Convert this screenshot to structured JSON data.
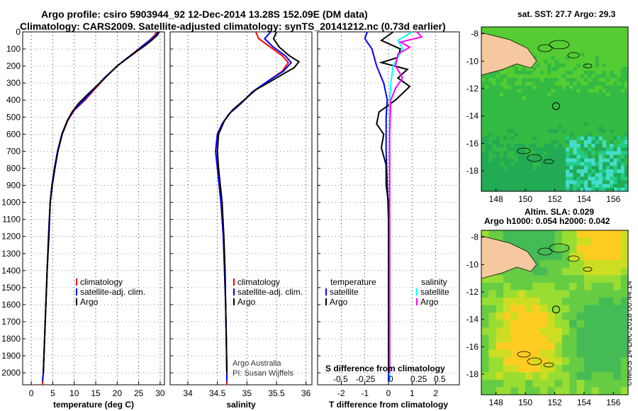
{
  "figure": {
    "title_line1": "Argo profile: csiro 5903944_92 12-Dec-2014 13.28S 152.09E (DM data)",
    "title_line2": "Climatology: CARS2009. Satellite-adjusted climatology: synTS_20141212.nc (0.73d earlier)",
    "stamp": "©IMOS 14-Dec-2018 00:44:14",
    "credit_line1": "Argo Australia",
    "credit_line2": "PI: Susan Wijffels",
    "colors": {
      "climatology": "#ff0000",
      "satellite": "#0000ff",
      "argo": "#000000",
      "sat_salinity": "#00ffff",
      "argo_salinity": "#ff00ff",
      "land": "#f5c8a0"
    }
  },
  "chart_data": [
    {
      "type": "line",
      "id": "temperature",
      "xlabel": "temperature (deg C)",
      "ylabel": "",
      "xlim": [
        -2,
        31
      ],
      "ylim": [
        2070,
        0
      ],
      "xticks": [
        0,
        5,
        10,
        15,
        20,
        25,
        30
      ],
      "yticks": [
        0,
        100,
        200,
        300,
        400,
        500,
        600,
        700,
        800,
        900,
        1000,
        1100,
        1200,
        1300,
        1400,
        1500,
        1600,
        1700,
        1800,
        1900,
        2000
      ],
      "grid": true,
      "legend": [
        "climatology",
        "satellite-adj. clim.",
        "Argo"
      ],
      "series": [
        {
          "name": "climatology",
          "color": "#ff0000",
          "points": [
            [
              29.2,
              0
            ],
            [
              28.7,
              20
            ],
            [
              27.5,
              50
            ],
            [
              26,
              80
            ],
            [
              24,
              120
            ],
            [
              20.5,
              190
            ],
            [
              17.5,
              260
            ],
            [
              15,
              330
            ],
            [
              12.5,
              400
            ],
            [
              10,
              460
            ],
            [
              8.5,
              520
            ],
            [
              7.2,
              600
            ],
            [
              6.2,
              700
            ],
            [
              5.4,
              800
            ],
            [
              4.8,
              900
            ],
            [
              4.4,
              1000
            ],
            [
              4,
              1200
            ],
            [
              3.7,
              1400
            ],
            [
              3.4,
              1600
            ],
            [
              3.1,
              1800
            ],
            [
              2.8,
              2000
            ],
            [
              2.6,
              2070
            ]
          ]
        },
        {
          "name": "satellite-adj. clim.",
          "color": "#0000ff",
          "points": [
            [
              29.6,
              0
            ],
            [
              29,
              20
            ],
            [
              27.6,
              50
            ],
            [
              26,
              80
            ],
            [
              23.7,
              130
            ],
            [
              20,
              200
            ],
            [
              17,
              270
            ],
            [
              14.8,
              330
            ],
            [
              12.3,
              400
            ],
            [
              9.9,
              460
            ],
            [
              8.4,
              520
            ],
            [
              7.1,
              600
            ],
            [
              6.1,
              700
            ],
            [
              5.4,
              800
            ],
            [
              4.8,
              900
            ],
            [
              4.4,
              1000
            ],
            [
              4,
              1200
            ],
            [
              3.7,
              1400
            ],
            [
              3.4,
              1600
            ],
            [
              3.1,
              1800
            ],
            [
              2.8,
              2000
            ],
            [
              2.6,
              2050
            ]
          ]
        },
        {
          "name": "Argo",
          "color": "#000000",
          "points": [
            [
              29.8,
              0
            ],
            [
              29.3,
              20
            ],
            [
              28,
              50
            ],
            [
              26.5,
              80
            ],
            [
              24.8,
              110
            ],
            [
              22.5,
              150
            ],
            [
              20,
              200
            ],
            [
              18,
              250
            ],
            [
              15.5,
              310
            ],
            [
              13,
              370
            ],
            [
              11,
              420
            ],
            [
              9.5,
              470
            ],
            [
              8.4,
              520
            ],
            [
              7.2,
              600
            ],
            [
              6.2,
              700
            ],
            [
              5.5,
              800
            ],
            [
              4.9,
              900
            ],
            [
              4.4,
              1000
            ],
            [
              4.1,
              1200
            ],
            [
              3.7,
              1400
            ],
            [
              3.4,
              1600
            ],
            [
              3.1,
              1800
            ],
            [
              2.8,
              2000
            ]
          ]
        }
      ]
    },
    {
      "type": "line",
      "id": "salinity",
      "xlabel": "salinity",
      "xlim": [
        33.7,
        36.1
      ],
      "ylim": [
        2070,
        0
      ],
      "xticks": [
        34,
        34.5,
        35,
        35.5,
        36
      ],
      "grid": true,
      "legend": [
        "climatology",
        "satellite-adj. clim.",
        "Argo"
      ],
      "series": [
        {
          "name": "climatology",
          "color": "#ff0000",
          "points": [
            [
              35.15,
              0
            ],
            [
              35.2,
              40
            ],
            [
              35.4,
              90
            ],
            [
              35.6,
              140
            ],
            [
              35.7,
              180
            ],
            [
              35.6,
              230
            ],
            [
              35.35,
              290
            ],
            [
              35.1,
              350
            ],
            [
              34.9,
              420
            ],
            [
              34.7,
              480
            ],
            [
              34.58,
              540
            ],
            [
              34.5,
              600
            ],
            [
              34.47,
              700
            ],
            [
              34.5,
              800
            ],
            [
              34.53,
              900
            ],
            [
              34.56,
              1000
            ],
            [
              34.6,
              1200
            ],
            [
              34.62,
              1400
            ],
            [
              34.64,
              1600
            ],
            [
              34.65,
              1800
            ],
            [
              34.66,
              2000
            ],
            [
              34.66,
              2070
            ]
          ]
        },
        {
          "name": "satellite-adj. clim.",
          "color": "#0000ff",
          "points": [
            [
              35.4,
              0
            ],
            [
              35.3,
              40
            ],
            [
              35.45,
              90
            ],
            [
              35.65,
              140
            ],
            [
              35.75,
              180
            ],
            [
              35.62,
              230
            ],
            [
              35.35,
              290
            ],
            [
              35.1,
              350
            ],
            [
              34.9,
              420
            ],
            [
              34.7,
              480
            ],
            [
              34.58,
              540
            ],
            [
              34.5,
              600
            ],
            [
              34.47,
              700
            ],
            [
              34.5,
              800
            ],
            [
              34.53,
              900
            ],
            [
              34.56,
              1000
            ],
            [
              34.6,
              1200
            ],
            [
              34.62,
              1400
            ],
            [
              34.64,
              1600
            ],
            [
              34.65,
              1800
            ],
            [
              34.66,
              2000
            ],
            [
              34.66,
              2050
            ]
          ]
        },
        {
          "name": "Argo",
          "color": "#000000",
          "points": [
            [
              35.5,
              0
            ],
            [
              35.45,
              40
            ],
            [
              35.55,
              90
            ],
            [
              35.72,
              140
            ],
            [
              35.88,
              175
            ],
            [
              35.8,
              210
            ],
            [
              35.6,
              250
            ],
            [
              35.4,
              290
            ],
            [
              35.15,
              340
            ],
            [
              34.95,
              400
            ],
            [
              34.75,
              460
            ],
            [
              34.62,
              520
            ],
            [
              34.52,
              600
            ],
            [
              34.5,
              700
            ],
            [
              34.52,
              800
            ],
            [
              34.55,
              900
            ],
            [
              34.58,
              1000
            ],
            [
              34.61,
              1200
            ],
            [
              34.63,
              1400
            ],
            [
              34.64,
              1600
            ],
            [
              34.65,
              1800
            ],
            [
              34.66,
              2000
            ]
          ]
        }
      ],
      "credit_line1": "Argo Australia",
      "credit_line2": "PI: Susan Wijffels"
    },
    {
      "type": "line",
      "id": "difference",
      "xlabel": "T difference from climatology",
      "xlabel_top": "S difference from climatology",
      "xlim": [
        -3,
        3
      ],
      "ylim": [
        2070,
        0
      ],
      "xticks": [
        -2,
        -1,
        0,
        1,
        2
      ],
      "xticklabels_top": [
        "-0.5",
        "-0.25",
        "0",
        "0.25",
        "0.5"
      ],
      "grid": true,
      "legend_left_title": "temperature",
      "legend_left": [
        "satellite",
        "Argo"
      ],
      "legend_right_title": "salinity",
      "legend_right": [
        "satellite",
        "Argo"
      ],
      "series": [
        {
          "name": "T satellite",
          "color": "#0000ff",
          "points": [
            [
              -0.9,
              0
            ],
            [
              -1,
              40
            ],
            [
              -0.7,
              100
            ],
            [
              -0.5,
              200
            ],
            [
              -0.2,
              300
            ],
            [
              -0.05,
              400
            ],
            [
              -0.1,
              500
            ],
            [
              -0.1,
              700
            ],
            [
              -0.05,
              900
            ],
            [
              0,
              1100
            ],
            [
              0,
              1500
            ],
            [
              0,
              2050
            ]
          ]
        },
        {
          "name": "T Argo",
          "color": "#000000",
          "points": [
            [
              0.2,
              0
            ],
            [
              -0.3,
              50
            ],
            [
              0.5,
              100
            ],
            [
              0.4,
              150
            ],
            [
              -0.3,
              180
            ],
            [
              0.8,
              220
            ],
            [
              0.4,
              270
            ],
            [
              0.9,
              320
            ],
            [
              0.3,
              400
            ],
            [
              -0.4,
              470
            ],
            [
              -0.5,
              540
            ],
            [
              -0.2,
              600
            ],
            [
              -0.3,
              680
            ],
            [
              -0.1,
              780
            ],
            [
              -0.1,
              900
            ],
            [
              0,
              1000
            ],
            [
              0,
              1500
            ],
            [
              0,
              2000
            ]
          ]
        },
        {
          "name": "S satellite",
          "color": "#00ffff",
          "points": [
            [
              1,
              0
            ],
            [
              0.4,
              50
            ],
            [
              0.6,
              100
            ],
            [
              0.4,
              150
            ],
            [
              0.2,
              200
            ],
            [
              0.1,
              300
            ],
            [
              0.05,
              400
            ],
            [
              0.05,
              600
            ],
            [
              0.05,
              800
            ],
            [
              0.05,
              1000
            ],
            [
              0.05,
              1500
            ],
            [
              0.05,
              2050
            ]
          ]
        },
        {
          "name": "S Argo",
          "color": "#ff00ff",
          "points": [
            [
              1.2,
              0
            ],
            [
              1.4,
              30
            ],
            [
              0.5,
              60
            ],
            [
              0.9,
              90
            ],
            [
              0.4,
              130
            ],
            [
              0.3,
              200
            ],
            [
              0.6,
              270
            ],
            [
              0.3,
              330
            ],
            [
              0.1,
              400
            ],
            [
              0.05,
              600
            ],
            [
              0.05,
              1000
            ],
            [
              0.05,
              2000
            ]
          ]
        }
      ]
    },
    {
      "type": "heatmap",
      "id": "sst_map",
      "title": "sat. SST: 27.7 Argo: 29.3",
      "xlim": [
        147,
        157
      ],
      "ylim": [
        -19.5,
        -7.5
      ],
      "xticks": [
        148,
        150,
        152,
        154,
        156
      ],
      "yticks": [
        -8,
        -10,
        -12,
        -14,
        -16,
        -18
      ],
      "marker": [
        152.09,
        -13.28
      ]
    },
    {
      "type": "heatmap",
      "id": "sla_map",
      "title_line1": "Altim. SLA: 0.029",
      "title_line2": "Argo h1000: 0.054 h2000: 0.042",
      "xlim": [
        147,
        157
      ],
      "ylim": [
        -19.5,
        -7.5
      ],
      "xticks": [
        148,
        150,
        152,
        154,
        156
      ],
      "yticks": [
        -8,
        -10,
        -12,
        -14,
        -16,
        -18
      ],
      "marker": [
        152.09,
        -13.28
      ]
    }
  ]
}
